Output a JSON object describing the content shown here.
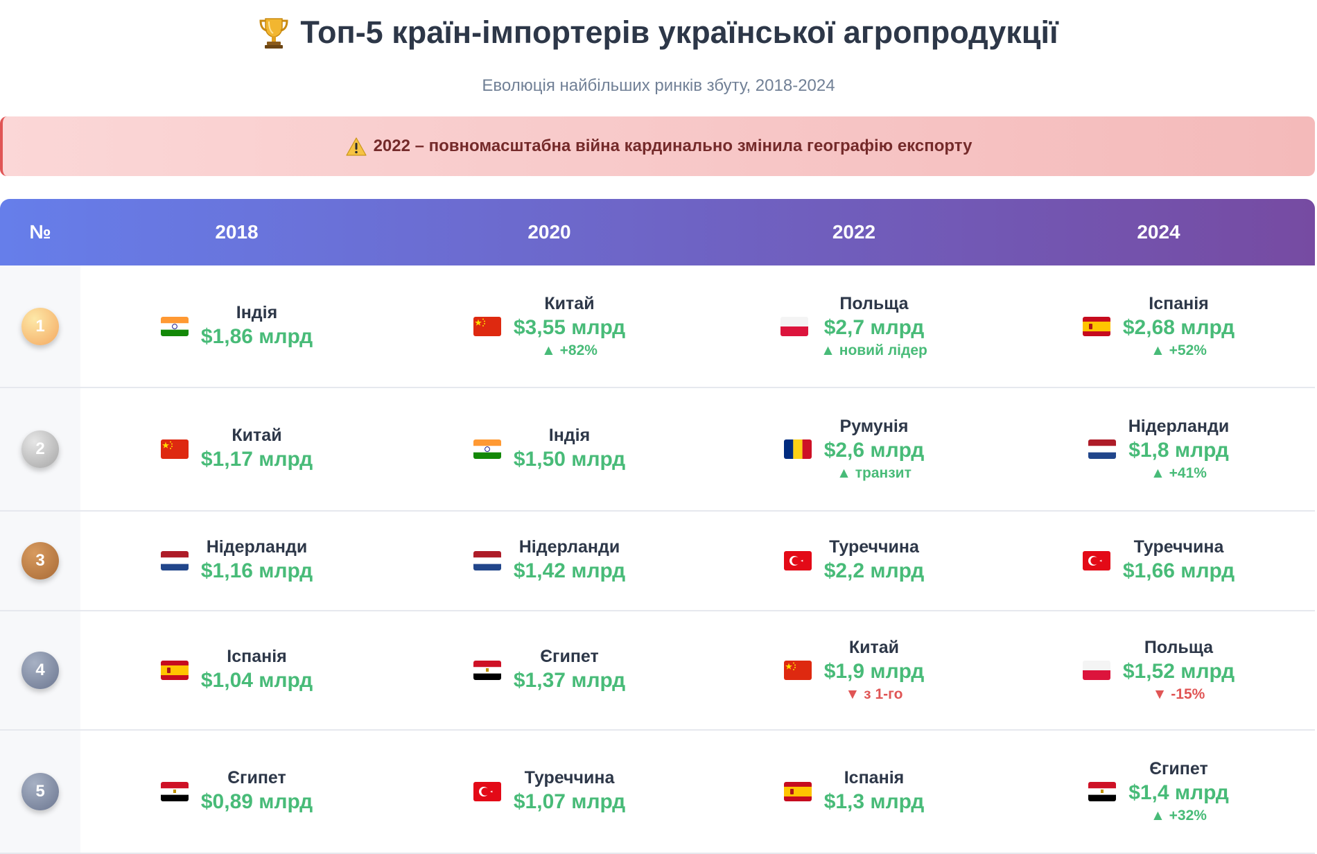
{
  "header": {
    "title": "Топ-5 країн-імпортерів української агропродукції",
    "subtitle": "Еволюція найбільших ринків збуту, 2018-2024"
  },
  "alert": {
    "text": "2022 – повномасштабна війна кардинально змінила географію експорту"
  },
  "table": {
    "columns": [
      "№",
      "2018",
      "2020",
      "2022",
      "2024"
    ],
    "rows": [
      {
        "rank": "1",
        "cells": [
          {
            "flag": "india-flag",
            "country": "Індія",
            "value": "$1,86 млрд"
          },
          {
            "flag": "china-flag",
            "country": "Китай",
            "value": "$3,55 млрд",
            "change": "▲ +82%",
            "direction": "up"
          },
          {
            "flag": "poland-flag",
            "country": "Польща",
            "value": "$2,7 млрд",
            "change": "▲ новий лідер",
            "direction": "up"
          },
          {
            "flag": "spain-flag",
            "country": "Іспанія",
            "value": "$2,68 млрд",
            "change": "▲ +52%",
            "direction": "up"
          }
        ]
      },
      {
        "rank": "2",
        "cells": [
          {
            "flag": "china-flag",
            "country": "Китай",
            "value": "$1,17 млрд"
          },
          {
            "flag": "india-flag",
            "country": "Індія",
            "value": "$1,50 млрд"
          },
          {
            "flag": "romania-flag",
            "country": "Румунія",
            "value": "$2,6 млрд",
            "change": "▲ транзит",
            "direction": "up"
          },
          {
            "flag": "netherlands-flag",
            "country": "Нідерланди",
            "value": "$1,8 млрд",
            "change": "▲ +41%",
            "direction": "up"
          }
        ]
      },
      {
        "rank": "3",
        "cells": [
          {
            "flag": "netherlands-flag",
            "country": "Нідерланди",
            "value": "$1,16 млрд"
          },
          {
            "flag": "netherlands-flag",
            "country": "Нідерланди",
            "value": "$1,42 млрд"
          },
          {
            "flag": "turkey-flag",
            "country": "Туреччина",
            "value": "$2,2 млрд"
          },
          {
            "flag": "turkey-flag",
            "country": "Туреччина",
            "value": "$1,66 млрд"
          }
        ]
      },
      {
        "rank": "4",
        "cells": [
          {
            "flag": "spain-flag",
            "country": "Іспанія",
            "value": "$1,04 млрд"
          },
          {
            "flag": "egypt-flag",
            "country": "Єгипет",
            "value": "$1,37 млрд"
          },
          {
            "flag": "china-flag",
            "country": "Китай",
            "value": "$1,9 млрд",
            "change": "▼ з 1-го",
            "direction": "down"
          },
          {
            "flag": "poland-flag",
            "country": "Польща",
            "value": "$1,52 млрд",
            "change": "▼ -15%",
            "direction": "down"
          }
        ]
      },
      {
        "rank": "5",
        "cells": [
          {
            "flag": "egypt-flag",
            "country": "Єгипет",
            "value": "$0,89 млрд"
          },
          {
            "flag": "turkey-flag",
            "country": "Туреччина",
            "value": "$1,07 млрд"
          },
          {
            "flag": "spain-flag",
            "country": "Іспанія",
            "value": "$1,3 млрд"
          },
          {
            "flag": "egypt-flag",
            "country": "Єгипет",
            "value": "$1,4 млрд",
            "change": "▲ +32%",
            "direction": "up"
          }
        ]
      }
    ]
  },
  "colors": {
    "header_gradient_start": "#667eea",
    "header_gradient_end": "#764ba2",
    "value_green": "#48bb78",
    "down_red": "#e05555",
    "alert_text": "#742a2a"
  }
}
